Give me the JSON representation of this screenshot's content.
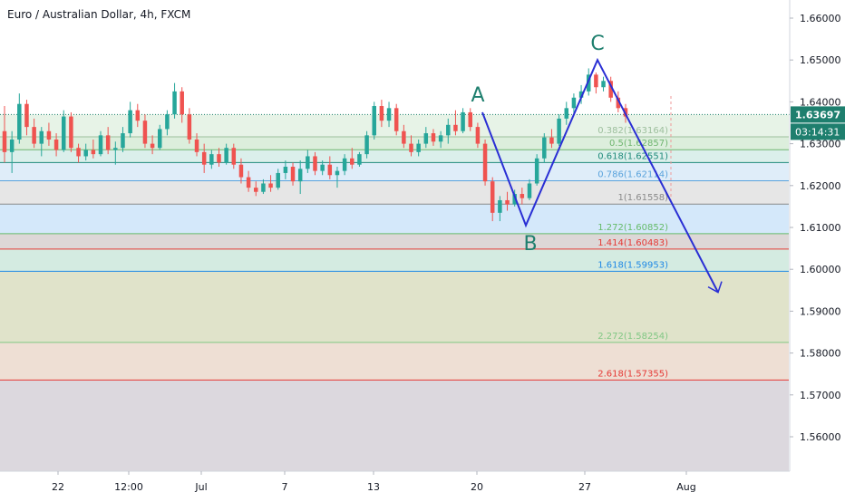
{
  "header": {
    "title": "Euro / Australian Dollar, 4h, FXCM"
  },
  "colors": {
    "up": "#26a69a",
    "down": "#ef5350",
    "wave": "#2a2fd4",
    "wave_label": "#1e7f6e",
    "price_badge": "#1e7f6e",
    "axis_text": "#131722"
  },
  "chart_data": {
    "type": "candlestick",
    "title": "Euro / Australian Dollar, 4h, FXCM",
    "y_range": [
      1.552,
      1.663
    ],
    "y_ticks": [
      "1.66000",
      "1.65000",
      "1.64000",
      "1.63000",
      "1.62000",
      "1.61000",
      "1.60000",
      "1.59000",
      "1.58000",
      "1.57000",
      "1.56000"
    ],
    "x_ticks": [
      "22",
      "12:00",
      "Jul",
      "7",
      "13",
      "20",
      "27",
      "Aug"
    ],
    "current_price": "1.63697",
    "countdown": "03:14:31",
    "fib_levels": [
      {
        "label": "0.382(1.63164)",
        "value": 1.63164,
        "color": "#9dbf9d"
      },
      {
        "label": "0.5(1.62857)",
        "value": 1.62857,
        "color": "#6fb56f"
      },
      {
        "label": "0.618(1.62551)",
        "value": 1.62551,
        "color": "#1e8a7a"
      },
      {
        "label": "0.786(1.62114)",
        "value": 1.62114,
        "color": "#5aa3dc"
      },
      {
        "label": "1(1.61558)",
        "value": 1.61558,
        "color": "#8a8a8a"
      },
      {
        "label": "1.272(1.60852)",
        "value": 1.60852,
        "color": "#66bb6a"
      },
      {
        "label": "1.414(1.60483)",
        "value": 1.60483,
        "color": "#e53935"
      },
      {
        "label": "1.618(1.59953)",
        "value": 1.59953,
        "color": "#1e88e5"
      },
      {
        "label": "2.272(1.58254)",
        "value": 1.58254,
        "color": "#81c784"
      },
      {
        "label": "2.618(1.57355)",
        "value": 1.57355,
        "color": "#e53935"
      }
    ],
    "fib_zone_base": 1.63697,
    "waves": [
      {
        "label": "A",
        "value": 1.6375
      },
      {
        "label": "B",
        "value": 1.6105
      },
      {
        "label": "C",
        "value": 1.65
      },
      {
        "label": "",
        "value": 1.5945
      }
    ],
    "candles": [
      {
        "o": 1.633,
        "h": 1.639,
        "l": 1.6255,
        "c": 1.628
      },
      {
        "o": 1.628,
        "h": 1.633,
        "l": 1.623,
        "c": 1.631
      },
      {
        "o": 1.631,
        "h": 1.642,
        "l": 1.63,
        "c": 1.6395
      },
      {
        "o": 1.6395,
        "h": 1.6405,
        "l": 1.632,
        "c": 1.634
      },
      {
        "o": 1.634,
        "h": 1.636,
        "l": 1.629,
        "c": 1.63
      },
      {
        "o": 1.63,
        "h": 1.634,
        "l": 1.627,
        "c": 1.633
      },
      {
        "o": 1.633,
        "h": 1.635,
        "l": 1.6295,
        "c": 1.631
      },
      {
        "o": 1.631,
        "h": 1.6325,
        "l": 1.627,
        "c": 1.6285
      },
      {
        "o": 1.6285,
        "h": 1.638,
        "l": 1.628,
        "c": 1.6365
      },
      {
        "o": 1.6365,
        "h": 1.6375,
        "l": 1.628,
        "c": 1.629
      },
      {
        "o": 1.629,
        "h": 1.63,
        "l": 1.6255,
        "c": 1.627
      },
      {
        "o": 1.627,
        "h": 1.63,
        "l": 1.626,
        "c": 1.6285
      },
      {
        "o": 1.6285,
        "h": 1.631,
        "l": 1.6265,
        "c": 1.6275
      },
      {
        "o": 1.6275,
        "h": 1.633,
        "l": 1.627,
        "c": 1.632
      },
      {
        "o": 1.632,
        "h": 1.634,
        "l": 1.6275,
        "c": 1.6285
      },
      {
        "o": 1.6285,
        "h": 1.6305,
        "l": 1.625,
        "c": 1.629
      },
      {
        "o": 1.629,
        "h": 1.634,
        "l": 1.628,
        "c": 1.6325
      },
      {
        "o": 1.6325,
        "h": 1.64,
        "l": 1.6315,
        "c": 1.638
      },
      {
        "o": 1.638,
        "h": 1.6395,
        "l": 1.634,
        "c": 1.6355
      },
      {
        "o": 1.6355,
        "h": 1.637,
        "l": 1.629,
        "c": 1.63
      },
      {
        "o": 1.63,
        "h": 1.632,
        "l": 1.6275,
        "c": 1.629
      },
      {
        "o": 1.629,
        "h": 1.6345,
        "l": 1.6285,
        "c": 1.6335
      },
      {
        "o": 1.6335,
        "h": 1.638,
        "l": 1.632,
        "c": 1.637
      },
      {
        "o": 1.637,
        "h": 1.6445,
        "l": 1.636,
        "c": 1.6425
      },
      {
        "o": 1.6425,
        "h": 1.6435,
        "l": 1.635,
        "c": 1.637
      },
      {
        "o": 1.637,
        "h": 1.6385,
        "l": 1.63,
        "c": 1.631
      },
      {
        "o": 1.631,
        "h": 1.6325,
        "l": 1.627,
        "c": 1.628
      },
      {
        "o": 1.628,
        "h": 1.63,
        "l": 1.623,
        "c": 1.625
      },
      {
        "o": 1.625,
        "h": 1.6285,
        "l": 1.624,
        "c": 1.6275
      },
      {
        "o": 1.6275,
        "h": 1.629,
        "l": 1.6245,
        "c": 1.6255
      },
      {
        "o": 1.6255,
        "h": 1.63,
        "l": 1.625,
        "c": 1.629
      },
      {
        "o": 1.629,
        "h": 1.63,
        "l": 1.624,
        "c": 1.625
      },
      {
        "o": 1.625,
        "h": 1.6265,
        "l": 1.6205,
        "c": 1.622
      },
      {
        "o": 1.622,
        "h": 1.6235,
        "l": 1.6185,
        "c": 1.6195
      },
      {
        "o": 1.6195,
        "h": 1.621,
        "l": 1.6175,
        "c": 1.6185
      },
      {
        "o": 1.6185,
        "h": 1.6215,
        "l": 1.618,
        "c": 1.6205
      },
      {
        "o": 1.6205,
        "h": 1.6225,
        "l": 1.6185,
        "c": 1.6195
      },
      {
        "o": 1.6195,
        "h": 1.624,
        "l": 1.619,
        "c": 1.623
      },
      {
        "o": 1.623,
        "h": 1.626,
        "l": 1.6215,
        "c": 1.6245
      },
      {
        "o": 1.6245,
        "h": 1.6255,
        "l": 1.62,
        "c": 1.621
      },
      {
        "o": 1.621,
        "h": 1.626,
        "l": 1.618,
        "c": 1.624
      },
      {
        "o": 1.624,
        "h": 1.6285,
        "l": 1.623,
        "c": 1.627
      },
      {
        "o": 1.627,
        "h": 1.628,
        "l": 1.6225,
        "c": 1.6235
      },
      {
        "o": 1.6235,
        "h": 1.626,
        "l": 1.6225,
        "c": 1.625
      },
      {
        "o": 1.625,
        "h": 1.627,
        "l": 1.6215,
        "c": 1.6225
      },
      {
        "o": 1.6225,
        "h": 1.6245,
        "l": 1.6195,
        "c": 1.6235
      },
      {
        "o": 1.6235,
        "h": 1.6275,
        "l": 1.6225,
        "c": 1.6265
      },
      {
        "o": 1.6265,
        "h": 1.629,
        "l": 1.624,
        "c": 1.625
      },
      {
        "o": 1.625,
        "h": 1.628,
        "l": 1.6245,
        "c": 1.6275
      },
      {
        "o": 1.6275,
        "h": 1.633,
        "l": 1.6265,
        "c": 1.632
      },
      {
        "o": 1.632,
        "h": 1.64,
        "l": 1.631,
        "c": 1.639
      },
      {
        "o": 1.639,
        "h": 1.6405,
        "l": 1.634,
        "c": 1.6355
      },
      {
        "o": 1.6355,
        "h": 1.64,
        "l": 1.634,
        "c": 1.6385
      },
      {
        "o": 1.6385,
        "h": 1.6395,
        "l": 1.632,
        "c": 1.633
      },
      {
        "o": 1.633,
        "h": 1.6345,
        "l": 1.629,
        "c": 1.63
      },
      {
        "o": 1.63,
        "h": 1.632,
        "l": 1.627,
        "c": 1.628
      },
      {
        "o": 1.628,
        "h": 1.631,
        "l": 1.627,
        "c": 1.63
      },
      {
        "o": 1.63,
        "h": 1.634,
        "l": 1.629,
        "c": 1.6325
      },
      {
        "o": 1.6325,
        "h": 1.6335,
        "l": 1.6295,
        "c": 1.6305
      },
      {
        "o": 1.6305,
        "h": 1.633,
        "l": 1.629,
        "c": 1.632
      },
      {
        "o": 1.632,
        "h": 1.636,
        "l": 1.63,
        "c": 1.6345
      },
      {
        "o": 1.6345,
        "h": 1.638,
        "l": 1.632,
        "c": 1.633
      },
      {
        "o": 1.633,
        "h": 1.6385,
        "l": 1.6325,
        "c": 1.6375
      },
      {
        "o": 1.6375,
        "h": 1.6385,
        "l": 1.633,
        "c": 1.634
      },
      {
        "o": 1.634,
        "h": 1.635,
        "l": 1.629,
        "c": 1.63
      },
      {
        "o": 1.63,
        "h": 1.631,
        "l": 1.62,
        "c": 1.621
      },
      {
        "o": 1.621,
        "h": 1.622,
        "l": 1.6115,
        "c": 1.6135
      },
      {
        "o": 1.6135,
        "h": 1.6175,
        "l": 1.6115,
        "c": 1.6165
      },
      {
        "o": 1.6165,
        "h": 1.6185,
        "l": 1.614,
        "c": 1.6155
      },
      {
        "o": 1.6155,
        "h": 1.619,
        "l": 1.615,
        "c": 1.618
      },
      {
        "o": 1.618,
        "h": 1.6195,
        "l": 1.6155,
        "c": 1.617
      },
      {
        "o": 1.617,
        "h": 1.6215,
        "l": 1.6165,
        "c": 1.6205
      },
      {
        "o": 1.6205,
        "h": 1.6275,
        "l": 1.62,
        "c": 1.6265
      },
      {
        "o": 1.6265,
        "h": 1.6325,
        "l": 1.6255,
        "c": 1.6315
      },
      {
        "o": 1.6315,
        "h": 1.6335,
        "l": 1.629,
        "c": 1.63
      },
      {
        "o": 1.63,
        "h": 1.637,
        "l": 1.6295,
        "c": 1.636
      },
      {
        "o": 1.636,
        "h": 1.64,
        "l": 1.6345,
        "c": 1.6385
      },
      {
        "o": 1.6385,
        "h": 1.642,
        "l": 1.637,
        "c": 1.641
      },
      {
        "o": 1.641,
        "h": 1.644,
        "l": 1.6395,
        "c": 1.6425
      },
      {
        "o": 1.6425,
        "h": 1.648,
        "l": 1.6415,
        "c": 1.6465
      },
      {
        "o": 1.6465,
        "h": 1.647,
        "l": 1.642,
        "c": 1.6435
      },
      {
        "o": 1.6435,
        "h": 1.646,
        "l": 1.6425,
        "c": 1.645
      },
      {
        "o": 1.645,
        "h": 1.646,
        "l": 1.64,
        "c": 1.641
      },
      {
        "o": 1.641,
        "h": 1.6425,
        "l": 1.6375,
        "c": 1.6385
      },
      {
        "o": 1.6385,
        "h": 1.6395,
        "l": 1.635,
        "c": 1.6365
      }
    ]
  }
}
